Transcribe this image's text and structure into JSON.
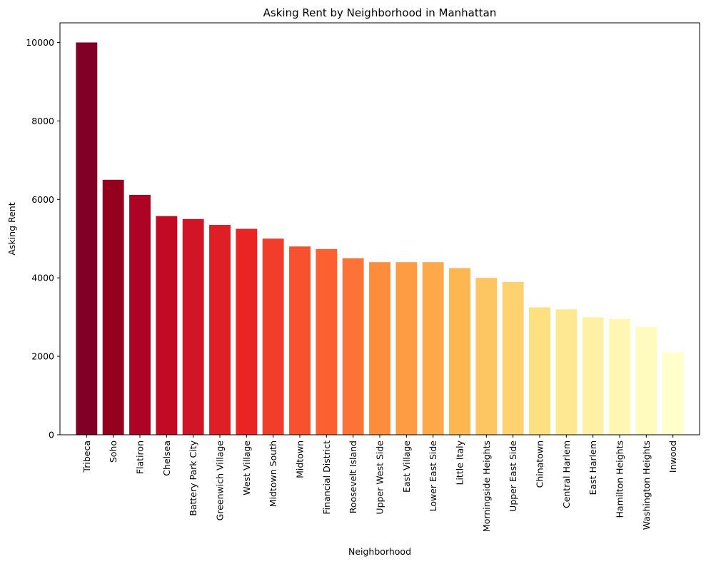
{
  "chart_data": {
    "type": "bar",
    "title": "Asking Rent by Neighborhood in Manhattan",
    "xlabel": "Neighborhood",
    "ylabel": "Asking Rent",
    "ylim": [
      0,
      10500
    ],
    "yticks": [
      0,
      2000,
      4000,
      6000,
      8000,
      10000
    ],
    "grid": false,
    "legend": "none",
    "categories": [
      "Tribeca",
      "Soho",
      "Flatiron",
      "Chelsea",
      "Battery Park City",
      "Greenwich Village",
      "West Village",
      "Midtown South",
      "Midtown",
      "Financial District",
      "Roosevelt Island",
      "Upper West Side",
      "East Village",
      "Lower East Side",
      "Little Italy",
      "Morningside Heights",
      "Upper East Side",
      "Chinatown",
      "Central Harlem",
      "East Harlem",
      "Hamilton Heights",
      "Washington Heights",
      "Inwood"
    ],
    "values": [
      10000,
      6500,
      6115,
      5575,
      5500,
      5350,
      5250,
      5000,
      4800,
      4735,
      4500,
      4400,
      4400,
      4400,
      4250,
      4000,
      3895,
      3250,
      3200,
      2995,
      2950,
      2750,
      2100
    ],
    "colors": [
      "#800026",
      "#96001f",
      "#ad0426",
      "#c20a25",
      "#d11526",
      "#df1f26",
      "#e92423",
      "#f13d29",
      "#f7512e",
      "#fc5f30",
      "#fd7337",
      "#fd8c3c",
      "#fd9c42",
      "#fea848",
      "#feb652",
      "#fec563",
      "#fed36f",
      "#fee080",
      "#fee892",
      "#fef1a5",
      "#fff6b4",
      "#fffabe",
      "#ffffcc"
    ]
  }
}
